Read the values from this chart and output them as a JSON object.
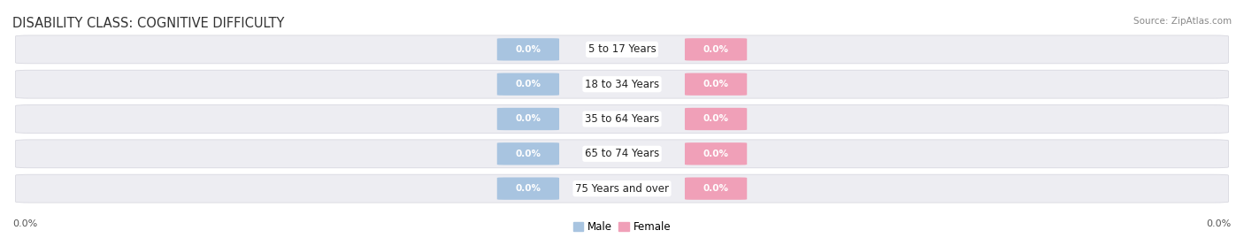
{
  "title": "DISABILITY CLASS: COGNITIVE DIFFICULTY",
  "source": "Source: ZipAtlas.com",
  "categories": [
    "5 to 17 Years",
    "18 to 34 Years",
    "35 to 64 Years",
    "65 to 74 Years",
    "75 Years and over"
  ],
  "male_values": [
    0.0,
    0.0,
    0.0,
    0.0,
    0.0
  ],
  "female_values": [
    0.0,
    0.0,
    0.0,
    0.0,
    0.0
  ],
  "male_color": "#a8c4e0",
  "female_color": "#f0a0b8",
  "bar_track_color": "#ededf2",
  "bar_track_border": "#d8d8e0",
  "title_fontsize": 10.5,
  "label_fontsize": 8.5,
  "value_fontsize": 7.5,
  "left_label": "0.0%",
  "right_label": "0.0%",
  "legend_male": "Male",
  "legend_female": "Female",
  "background_color": "#ffffff"
}
